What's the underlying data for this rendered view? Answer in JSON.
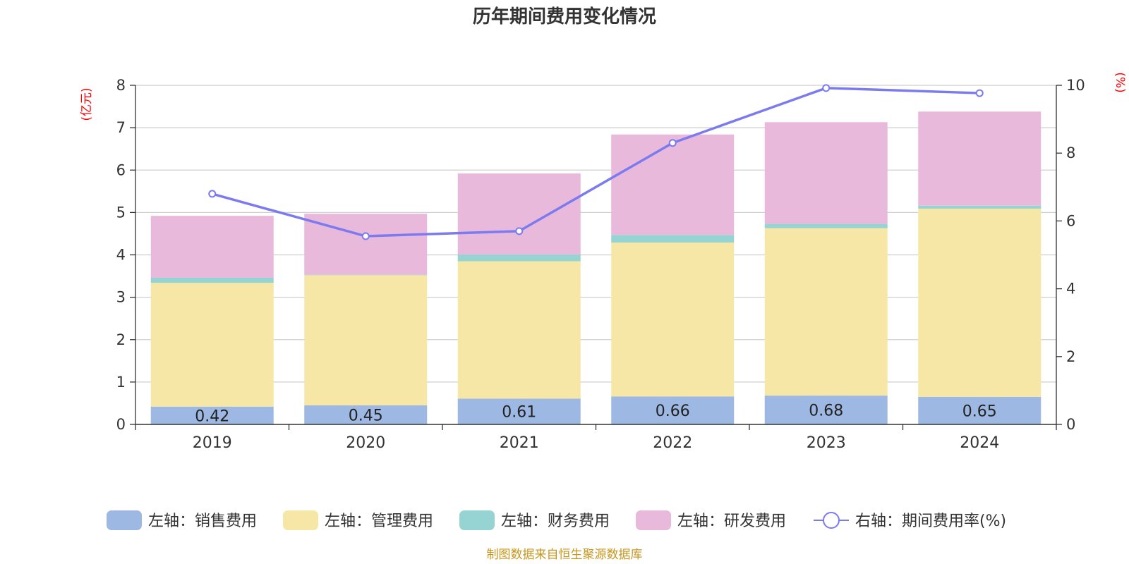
{
  "chart_data": {
    "type": "bar",
    "title": "历年期间费用变化情况",
    "left_axis_unit": "(亿元)",
    "right_axis_unit": "(%)",
    "categories": [
      "2019",
      "2020",
      "2021",
      "2022",
      "2023",
      "2024"
    ],
    "ylim": [
      0,
      8
    ],
    "yticks": [
      "0",
      "1",
      "2",
      "3",
      "4",
      "5",
      "6",
      "7",
      "8"
    ],
    "y2lim": [
      0,
      10
    ],
    "y2ticks": [
      "0",
      "2",
      "4",
      "6",
      "8",
      "10"
    ],
    "grid": true,
    "legend_position": "bottom",
    "series": [
      {
        "name": "左轴：销售费用",
        "type": "bar",
        "stack": "left",
        "color": "#9db8e2",
        "values": [
          0.42,
          0.45,
          0.61,
          0.66,
          0.68,
          0.65
        ],
        "labels": [
          "0.42",
          "0.45",
          "0.61",
          "0.66",
          "0.68",
          "0.65"
        ]
      },
      {
        "name": "左轴：管理费用",
        "type": "bar",
        "stack": "left",
        "color": "#f7e7a6",
        "values": [
          2.92,
          3.07,
          3.24,
          3.63,
          3.95,
          4.44
        ]
      },
      {
        "name": "左轴：财务费用",
        "type": "bar",
        "stack": "left",
        "color": "#96d4d4",
        "values": [
          0.12,
          0.01,
          0.16,
          0.18,
          0.1,
          0.07
        ]
      },
      {
        "name": "左轴：研发费用",
        "type": "bar",
        "stack": "left",
        "color": "#e8b9da",
        "values": [
          1.46,
          1.44,
          1.91,
          2.37,
          2.4,
          2.22
        ]
      },
      {
        "name": "右轴：期间费用率(%)",
        "type": "line",
        "axis": "right",
        "color": "#7b7bef",
        "values": [
          6.8,
          5.55,
          5.7,
          8.3,
          9.92,
          9.77
        ]
      }
    ],
    "source": "制图数据来自恒生聚源数据库"
  }
}
